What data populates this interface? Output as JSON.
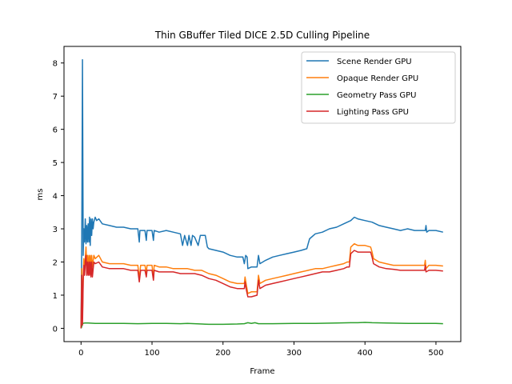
{
  "chart_data": {
    "type": "line",
    "title": "Thin GBuffer Tiled DICE 2.5D Culling Pipeline",
    "xlabel": "Frame",
    "ylabel": "ms",
    "xlim": [
      -24,
      535
    ],
    "ylim": [
      -0.4,
      8.5
    ],
    "xticks": [
      0,
      100,
      200,
      300,
      400,
      500
    ],
    "yticks": [
      0,
      1,
      2,
      3,
      4,
      5,
      6,
      7,
      8
    ],
    "grid": false,
    "legend_position": "top-right",
    "series": [
      {
        "name": "Scene Render GPU",
        "color": "#1f77b4",
        "points": [
          [
            0,
            0
          ],
          [
            1,
            2.6
          ],
          [
            2,
            8.1
          ],
          [
            3,
            2.2
          ],
          [
            4,
            3.0
          ],
          [
            5,
            2.6
          ],
          [
            6,
            3.3
          ],
          [
            7,
            2.55
          ],
          [
            8,
            3.1
          ],
          [
            9,
            2.6
          ],
          [
            10,
            3.15
          ],
          [
            11,
            2.6
          ],
          [
            12,
            3.35
          ],
          [
            13,
            2.5
          ],
          [
            14,
            3.3
          ],
          [
            15,
            2.8
          ],
          [
            16,
            3.3
          ],
          [
            17,
            3.0
          ],
          [
            18,
            3.2
          ],
          [
            20,
            3.35
          ],
          [
            22,
            3.25
          ],
          [
            25,
            3.3
          ],
          [
            30,
            3.15
          ],
          [
            40,
            3.1
          ],
          [
            50,
            3.05
          ],
          [
            60,
            3.05
          ],
          [
            70,
            3.0
          ],
          [
            80,
            3.0
          ],
          [
            82,
            2.6
          ],
          [
            83,
            2.95
          ],
          [
            90,
            2.95
          ],
          [
            92,
            2.65
          ],
          [
            93,
            2.95
          ],
          [
            100,
            2.95
          ],
          [
            102,
            2.65
          ],
          [
            103,
            2.95
          ],
          [
            110,
            2.9
          ],
          [
            120,
            2.95
          ],
          [
            130,
            2.9
          ],
          [
            140,
            2.85
          ],
          [
            143,
            2.5
          ],
          [
            146,
            2.8
          ],
          [
            150,
            2.5
          ],
          [
            152,
            2.8
          ],
          [
            155,
            2.5
          ],
          [
            157,
            2.8
          ],
          [
            160,
            2.75
          ],
          [
            165,
            2.5
          ],
          [
            168,
            2.8
          ],
          [
            175,
            2.8
          ],
          [
            178,
            2.45
          ],
          [
            180,
            2.4
          ],
          [
            190,
            2.35
          ],
          [
            200,
            2.3
          ],
          [
            210,
            2.2
          ],
          [
            220,
            2.15
          ],
          [
            228,
            2.15
          ],
          [
            230,
            1.95
          ],
          [
            232,
            2.2
          ],
          [
            234,
            2.15
          ],
          [
            235,
            1.8
          ],
          [
            240,
            1.85
          ],
          [
            248,
            1.85
          ],
          [
            250,
            2.2
          ],
          [
            252,
            1.95
          ],
          [
            260,
            2.05
          ],
          [
            270,
            2.15
          ],
          [
            280,
            2.2
          ],
          [
            290,
            2.25
          ],
          [
            300,
            2.3
          ],
          [
            310,
            2.35
          ],
          [
            318,
            2.4
          ],
          [
            320,
            2.55
          ],
          [
            322,
            2.7
          ],
          [
            330,
            2.85
          ],
          [
            340,
            2.9
          ],
          [
            350,
            3.0
          ],
          [
            360,
            3.05
          ],
          [
            370,
            3.15
          ],
          [
            380,
            3.25
          ],
          [
            385,
            3.35
          ],
          [
            390,
            3.3
          ],
          [
            400,
            3.25
          ],
          [
            410,
            3.2
          ],
          [
            420,
            3.1
          ],
          [
            430,
            3.05
          ],
          [
            440,
            3.0
          ],
          [
            450,
            2.95
          ],
          [
            460,
            3.0
          ],
          [
            470,
            2.95
          ],
          [
            480,
            2.95
          ],
          [
            485,
            2.95
          ],
          [
            486,
            3.1
          ],
          [
            487,
            2.9
          ],
          [
            490,
            2.95
          ],
          [
            500,
            2.95
          ],
          [
            510,
            2.9
          ]
        ]
      },
      {
        "name": "Opaque Render GPU",
        "color": "#ff7f0e",
        "points": [
          [
            0,
            0
          ],
          [
            1,
            1.8
          ],
          [
            2,
            0.3
          ],
          [
            3,
            1.5
          ],
          [
            4,
            2.1
          ],
          [
            5,
            1.7
          ],
          [
            6,
            2.1
          ],
          [
            7,
            2.45
          ],
          [
            8,
            1.9
          ],
          [
            9,
            2.2
          ],
          [
            10,
            1.7
          ],
          [
            11,
            2.2
          ],
          [
            12,
            1.8
          ],
          [
            13,
            2.2
          ],
          [
            14,
            1.7
          ],
          [
            15,
            2.2
          ],
          [
            16,
            1.85
          ],
          [
            18,
            2.2
          ],
          [
            20,
            2.1
          ],
          [
            25,
            2.2
          ],
          [
            30,
            2.0
          ],
          [
            40,
            1.95
          ],
          [
            50,
            1.95
          ],
          [
            60,
            1.95
          ],
          [
            70,
            1.9
          ],
          [
            80,
            1.9
          ],
          [
            82,
            1.5
          ],
          [
            84,
            1.9
          ],
          [
            90,
            1.9
          ],
          [
            92,
            1.65
          ],
          [
            93,
            1.9
          ],
          [
            100,
            1.9
          ],
          [
            102,
            1.5
          ],
          [
            103,
            1.9
          ],
          [
            110,
            1.85
          ],
          [
            120,
            1.85
          ],
          [
            130,
            1.8
          ],
          [
            140,
            1.8
          ],
          [
            150,
            1.8
          ],
          [
            160,
            1.75
          ],
          [
            170,
            1.75
          ],
          [
            180,
            1.65
          ],
          [
            190,
            1.6
          ],
          [
            200,
            1.5
          ],
          [
            210,
            1.4
          ],
          [
            220,
            1.35
          ],
          [
            230,
            1.35
          ],
          [
            231,
            1.55
          ],
          [
            233,
            1.3
          ],
          [
            235,
            1.05
          ],
          [
            240,
            1.1
          ],
          [
            248,
            1.1
          ],
          [
            250,
            1.6
          ],
          [
            252,
            1.35
          ],
          [
            260,
            1.45
          ],
          [
            270,
            1.5
          ],
          [
            280,
            1.55
          ],
          [
            290,
            1.6
          ],
          [
            300,
            1.65
          ],
          [
            310,
            1.7
          ],
          [
            320,
            1.75
          ],
          [
            330,
            1.8
          ],
          [
            340,
            1.8
          ],
          [
            350,
            1.85
          ],
          [
            360,
            1.9
          ],
          [
            370,
            1.95
          ],
          [
            375,
            2.0
          ],
          [
            378,
            2.0
          ],
          [
            380,
            2.45
          ],
          [
            385,
            2.55
          ],
          [
            390,
            2.5
          ],
          [
            400,
            2.5
          ],
          [
            408,
            2.45
          ],
          [
            410,
            2.3
          ],
          [
            412,
            2.1
          ],
          [
            420,
            2.0
          ],
          [
            430,
            1.95
          ],
          [
            440,
            1.9
          ],
          [
            450,
            1.9
          ],
          [
            460,
            1.9
          ],
          [
            470,
            1.9
          ],
          [
            480,
            1.9
          ],
          [
            484,
            1.9
          ],
          [
            485,
            2.05
          ],
          [
            486,
            1.8
          ],
          [
            490,
            1.9
          ],
          [
            500,
            1.9
          ],
          [
            510,
            1.88
          ]
        ]
      },
      {
        "name": "Geometry Pass GPU",
        "color": "#2ca02c",
        "points": [
          [
            0,
            0
          ],
          [
            1,
            0.05
          ],
          [
            2,
            0.17
          ],
          [
            3,
            0.15
          ],
          [
            5,
            0.16
          ],
          [
            10,
            0.16
          ],
          [
            20,
            0.15
          ],
          [
            40,
            0.15
          ],
          [
            60,
            0.15
          ],
          [
            80,
            0.14
          ],
          [
            100,
            0.15
          ],
          [
            120,
            0.15
          ],
          [
            140,
            0.14
          ],
          [
            150,
            0.15
          ],
          [
            160,
            0.14
          ],
          [
            180,
            0.12
          ],
          [
            200,
            0.12
          ],
          [
            220,
            0.13
          ],
          [
            230,
            0.14
          ],
          [
            235,
            0.17
          ],
          [
            240,
            0.15
          ],
          [
            245,
            0.17
          ],
          [
            250,
            0.14
          ],
          [
            270,
            0.14
          ],
          [
            300,
            0.15
          ],
          [
            330,
            0.15
          ],
          [
            360,
            0.16
          ],
          [
            380,
            0.17
          ],
          [
            390,
            0.17
          ],
          [
            400,
            0.18
          ],
          [
            410,
            0.17
          ],
          [
            430,
            0.16
          ],
          [
            460,
            0.15
          ],
          [
            480,
            0.15
          ],
          [
            500,
            0.15
          ],
          [
            510,
            0.14
          ]
        ]
      },
      {
        "name": "Lighting Pass GPU",
        "color": "#d62728",
        "points": [
          [
            0,
            0
          ],
          [
            1,
            1.6
          ],
          [
            2,
            0.1
          ],
          [
            3,
            1.4
          ],
          [
            4,
            1.9
          ],
          [
            5,
            1.6
          ],
          [
            6,
            2.0
          ],
          [
            7,
            2.2
          ],
          [
            8,
            1.6
          ],
          [
            9,
            2.0
          ],
          [
            10,
            1.6
          ],
          [
            11,
            2.0
          ],
          [
            12,
            1.6
          ],
          [
            13,
            2.0
          ],
          [
            14,
            1.55
          ],
          [
            15,
            2.0
          ],
          [
            16,
            1.55
          ],
          [
            18,
            2.0
          ],
          [
            20,
            1.95
          ],
          [
            25,
            2.0
          ],
          [
            30,
            1.85
          ],
          [
            40,
            1.8
          ],
          [
            50,
            1.8
          ],
          [
            60,
            1.8
          ],
          [
            70,
            1.75
          ],
          [
            80,
            1.75
          ],
          [
            82,
            1.4
          ],
          [
            84,
            1.75
          ],
          [
            90,
            1.75
          ],
          [
            92,
            1.55
          ],
          [
            93,
            1.75
          ],
          [
            100,
            1.75
          ],
          [
            102,
            1.45
          ],
          [
            103,
            1.75
          ],
          [
            110,
            1.7
          ],
          [
            120,
            1.7
          ],
          [
            130,
            1.7
          ],
          [
            140,
            1.65
          ],
          [
            150,
            1.65
          ],
          [
            160,
            1.65
          ],
          [
            170,
            1.6
          ],
          [
            180,
            1.5
          ],
          [
            190,
            1.45
          ],
          [
            200,
            1.35
          ],
          [
            210,
            1.25
          ],
          [
            220,
            1.2
          ],
          [
            230,
            1.2
          ],
          [
            231,
            1.4
          ],
          [
            233,
            1.15
          ],
          [
            235,
            0.95
          ],
          [
            240,
            0.95
          ],
          [
            248,
            1.0
          ],
          [
            250,
            1.45
          ],
          [
            252,
            1.2
          ],
          [
            260,
            1.3
          ],
          [
            270,
            1.35
          ],
          [
            280,
            1.4
          ],
          [
            290,
            1.45
          ],
          [
            300,
            1.5
          ],
          [
            310,
            1.55
          ],
          [
            320,
            1.6
          ],
          [
            330,
            1.65
          ],
          [
            340,
            1.7
          ],
          [
            350,
            1.7
          ],
          [
            360,
            1.75
          ],
          [
            370,
            1.8
          ],
          [
            375,
            1.85
          ],
          [
            378,
            1.85
          ],
          [
            380,
            2.25
          ],
          [
            385,
            2.35
          ],
          [
            390,
            2.3
          ],
          [
            400,
            2.3
          ],
          [
            408,
            2.3
          ],
          [
            410,
            2.15
          ],
          [
            412,
            1.95
          ],
          [
            420,
            1.85
          ],
          [
            430,
            1.8
          ],
          [
            440,
            1.78
          ],
          [
            450,
            1.75
          ],
          [
            460,
            1.75
          ],
          [
            470,
            1.75
          ],
          [
            480,
            1.75
          ],
          [
            484,
            1.75
          ],
          [
            485,
            1.9
          ],
          [
            486,
            1.7
          ],
          [
            490,
            1.75
          ],
          [
            500,
            1.75
          ],
          [
            510,
            1.73
          ]
        ]
      }
    ]
  }
}
